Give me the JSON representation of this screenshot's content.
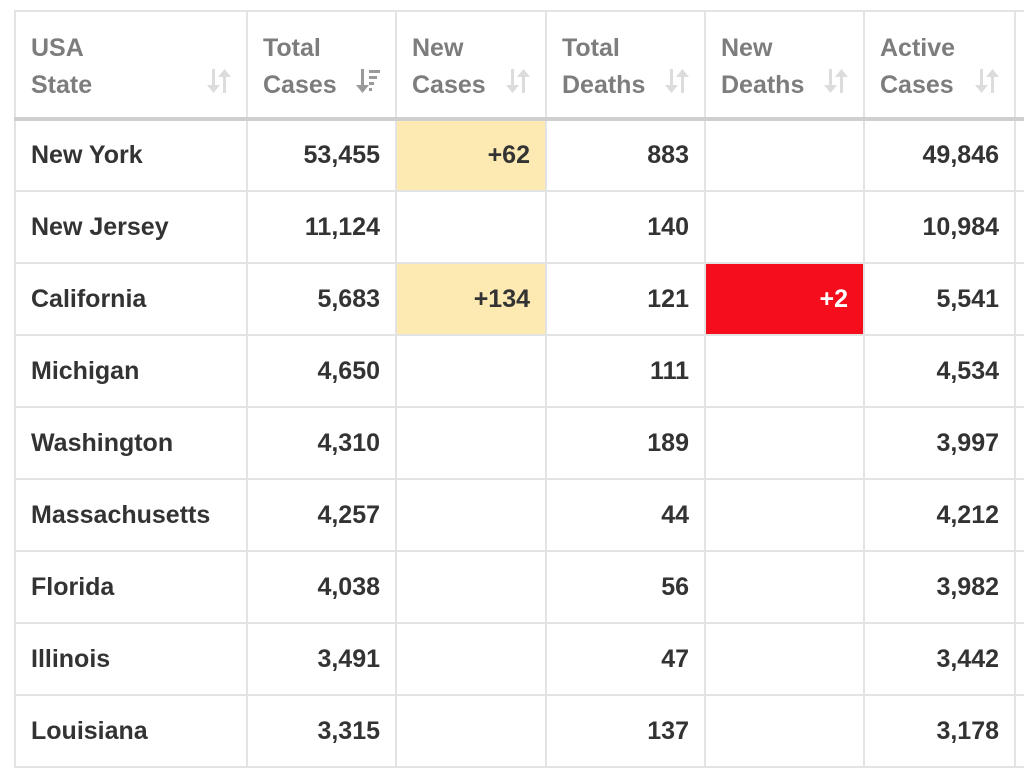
{
  "header": {
    "columns": [
      {
        "line1": "USA",
        "line2": "State",
        "sort_icon": "sort-icon"
      },
      {
        "line1": "Total",
        "line2": "Cases",
        "sort_icon": "sort-desc-icon"
      },
      {
        "line1": "New",
        "line2": "Cases",
        "sort_icon": "sort-icon"
      },
      {
        "line1": "Total",
        "line2": "Deaths",
        "sort_icon": "sort-icon"
      },
      {
        "line1": "New",
        "line2": "Deaths",
        "sort_icon": "sort-icon"
      },
      {
        "line1": "Active",
        "line2": "Cases",
        "sort_icon": "sort-icon"
      }
    ]
  },
  "rows": [
    {
      "state": "New York",
      "total_cases": "53,455",
      "new_cases": "+62",
      "total_deaths": "883",
      "new_deaths": "",
      "active_cases": "49,846"
    },
    {
      "state": "New Jersey",
      "total_cases": "11,124",
      "new_cases": "",
      "total_deaths": "140",
      "new_deaths": "",
      "active_cases": "10,984"
    },
    {
      "state": "California",
      "total_cases": "5,683",
      "new_cases": "+134",
      "total_deaths": "121",
      "new_deaths": "+2",
      "active_cases": "5,541"
    },
    {
      "state": "Michigan",
      "total_cases": "4,650",
      "new_cases": "",
      "total_deaths": "111",
      "new_deaths": "",
      "active_cases": "4,534"
    },
    {
      "state": "Washington",
      "total_cases": "4,310",
      "new_cases": "",
      "total_deaths": "189",
      "new_deaths": "",
      "active_cases": "3,997"
    },
    {
      "state": "Massachusetts",
      "total_cases": "4,257",
      "new_cases": "",
      "total_deaths": "44",
      "new_deaths": "",
      "active_cases": "4,212"
    },
    {
      "state": "Florida",
      "total_cases": "4,038",
      "new_cases": "",
      "total_deaths": "56",
      "new_deaths": "",
      "active_cases": "3,982"
    },
    {
      "state": "Illinois",
      "total_cases": "3,491",
      "new_cases": "",
      "total_deaths": "47",
      "new_deaths": "",
      "active_cases": "3,442"
    },
    {
      "state": "Louisiana",
      "total_cases": "3,315",
      "new_cases": "",
      "total_deaths": "137",
      "new_deaths": "",
      "active_cases": "3,178"
    }
  ],
  "colors": {
    "new_cases_highlight": "#fde9b2",
    "new_deaths_highlight": "#f60d1b"
  }
}
